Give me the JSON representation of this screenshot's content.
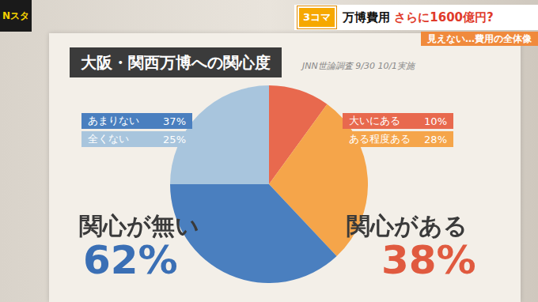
{
  "header": {
    "logo": "Nスタ",
    "segment": "3コマ",
    "headline": "万博費用",
    "headline_highlight": "さらに1600億円?",
    "subheadline": "見えない…費用の全体像"
  },
  "chart_data": {
    "type": "pie",
    "title": "大阪・関西万博への関心度",
    "subtitle": "JNN世論調査 9/30 10/1実施",
    "categories": [
      "大いにある",
      "ある程度ある",
      "あまりない",
      "全くない"
    ],
    "values": [
      10,
      28,
      37,
      25
    ],
    "value_labels": [
      "10%",
      "28%",
      "37%",
      "25%"
    ],
    "colors": [
      "#e8694e",
      "#f5a54a",
      "#4a7fbf",
      "#a8c5dd"
    ],
    "groups": [
      {
        "name": "関心が無い",
        "value": 62,
        "value_label": "62%",
        "color": "#3a6fb5",
        "members": [
          "あまりない",
          "全くない"
        ]
      },
      {
        "name": "関心がある",
        "value": 38,
        "value_label": "38%",
        "color": "#e05a3f",
        "members": [
          "大いにある",
          "ある程度ある"
        ]
      }
    ]
  }
}
